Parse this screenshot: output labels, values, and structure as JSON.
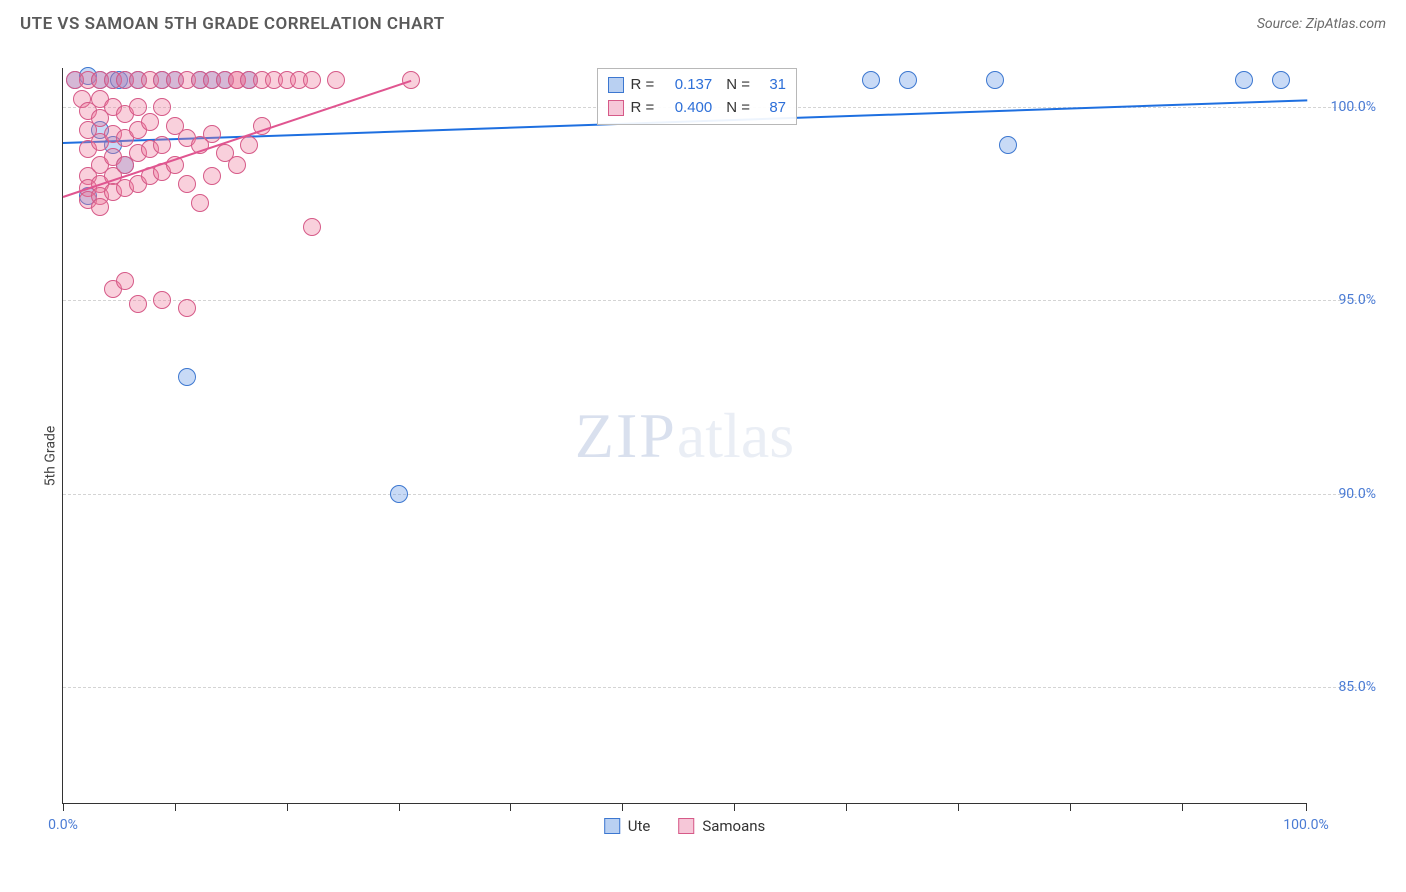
{
  "title": "UTE VS SAMOAN 5TH GRADE CORRELATION CHART",
  "source": "Source: ZipAtlas.com",
  "yaxis_label": "5th Grade",
  "watermark_a": "ZIP",
  "watermark_b": "atlas",
  "chart": {
    "type": "scatter",
    "xlim": [
      0,
      100
    ],
    "ylim": [
      82,
      101
    ],
    "x_ticks": [
      0,
      9,
      18,
      27,
      36,
      45,
      54,
      63,
      72,
      81,
      90,
      100
    ],
    "x_tick_labels_shown": {
      "0": "0.0%",
      "100": "100.0%"
    },
    "y_gridlines": [
      85,
      90,
      95,
      100
    ],
    "y_tick_labels": {
      "85": "85.0%",
      "90": "90.0%",
      "95": "95.0%",
      "100": "100.0%"
    },
    "background_color": "#ffffff",
    "grid_color": "#d4d4d4",
    "axis_color": "#333333",
    "tick_label_color": "#4a7bd4",
    "marker_radius": 9,
    "marker_opacity": 0.45,
    "series": [
      {
        "name": "Ute",
        "color_fill": "rgba(96,150,230,0.35)",
        "color_stroke": "#3c77d0",
        "swatch_fill": "#b9d0f2",
        "swatch_border": "#3c77d0",
        "trend": {
          "x1": 0,
          "y1": 99.1,
          "x2": 100,
          "y2": 100.2,
          "color": "#1e6fe0",
          "width": 2
        },
        "R": "0.137",
        "N": "31",
        "points": [
          [
            1,
            100.7
          ],
          [
            2,
            100.8
          ],
          [
            3,
            100.7
          ],
          [
            4,
            100.7
          ],
          [
            4.5,
            100.7
          ],
          [
            5,
            100.7
          ],
          [
            6,
            100.7
          ],
          [
            8,
            100.7
          ],
          [
            9,
            100.7
          ],
          [
            11,
            100.7
          ],
          [
            12,
            100.7
          ],
          [
            13,
            100.7
          ],
          [
            15,
            100.7
          ],
          [
            3,
            99.4
          ],
          [
            4,
            99.0
          ],
          [
            5,
            98.5
          ],
          [
            2,
            97.7
          ],
          [
            10,
            93.0
          ],
          [
            27,
            90.0
          ],
          [
            65,
            100.7
          ],
          [
            68,
            100.7
          ],
          [
            75,
            100.7
          ],
          [
            95,
            100.7
          ],
          [
            98,
            100.7
          ],
          [
            76,
            99.0
          ]
        ]
      },
      {
        "name": "Samoans",
        "color_fill": "rgba(238,120,155,0.35)",
        "color_stroke": "#d65a88",
        "swatch_fill": "#f6c7d8",
        "swatch_border": "#d65a88",
        "trend": {
          "x1": 0,
          "y1": 97.7,
          "x2": 28,
          "y2": 100.7,
          "color": "#e05590",
          "width": 2
        },
        "R": "0.400",
        "N": "87",
        "points": [
          [
            1,
            100.7
          ],
          [
            1.5,
            100.2
          ],
          [
            2,
            100.7
          ],
          [
            2,
            99.9
          ],
          [
            2,
            99.4
          ],
          [
            2,
            98.9
          ],
          [
            2,
            98.2
          ],
          [
            2,
            97.9
          ],
          [
            2,
            97.6
          ],
          [
            3,
            100.7
          ],
          [
            3,
            100.2
          ],
          [
            3,
            99.7
          ],
          [
            3,
            99.1
          ],
          [
            3,
            98.5
          ],
          [
            3,
            98.0
          ],
          [
            3,
            97.7
          ],
          [
            3,
            97.4
          ],
          [
            4,
            100.7
          ],
          [
            4,
            100.0
          ],
          [
            4,
            99.3
          ],
          [
            4,
            98.7
          ],
          [
            4,
            98.2
          ],
          [
            4,
            97.8
          ],
          [
            4,
            95.3
          ],
          [
            5,
            100.7
          ],
          [
            5,
            99.8
          ],
          [
            5,
            99.2
          ],
          [
            5,
            98.5
          ],
          [
            5,
            97.9
          ],
          [
            5,
            95.5
          ],
          [
            6,
            100.7
          ],
          [
            6,
            100.0
          ],
          [
            6,
            99.4
          ],
          [
            6,
            98.8
          ],
          [
            6,
            98.0
          ],
          [
            6,
            94.9
          ],
          [
            7,
            100.7
          ],
          [
            7,
            99.6
          ],
          [
            7,
            98.9
          ],
          [
            7,
            98.2
          ],
          [
            8,
            100.7
          ],
          [
            8,
            100.0
          ],
          [
            8,
            99.0
          ],
          [
            8,
            98.3
          ],
          [
            8,
            95.0
          ],
          [
            9,
            100.7
          ],
          [
            9,
            99.5
          ],
          [
            9,
            98.5
          ],
          [
            10,
            100.7
          ],
          [
            10,
            99.2
          ],
          [
            10,
            98.0
          ],
          [
            10,
            94.8
          ],
          [
            11,
            100.7
          ],
          [
            11,
            99.0
          ],
          [
            11,
            97.5
          ],
          [
            12,
            100.7
          ],
          [
            12,
            99.3
          ],
          [
            12,
            98.2
          ],
          [
            13,
            100.7
          ],
          [
            13,
            98.8
          ],
          [
            14,
            100.7
          ],
          [
            14,
            100.7
          ],
          [
            14,
            98.5
          ],
          [
            15,
            100.7
          ],
          [
            15,
            99.0
          ],
          [
            16,
            100.7
          ],
          [
            16,
            99.5
          ],
          [
            17,
            100.7
          ],
          [
            18,
            100.7
          ],
          [
            19,
            100.7
          ],
          [
            20,
            100.7
          ],
          [
            20,
            96.9
          ],
          [
            22,
            100.7
          ],
          [
            28,
            100.7
          ]
        ]
      }
    ]
  },
  "legend_box": {
    "r_label": "R =",
    "n_label": "N ="
  },
  "x_legend": [
    {
      "key": "Ute",
      "swatch_fill": "#b9d0f2",
      "swatch_border": "#3c77d0"
    },
    {
      "key": "Samoans",
      "swatch_fill": "#f6c7d8",
      "swatch_border": "#d65a88"
    }
  ]
}
